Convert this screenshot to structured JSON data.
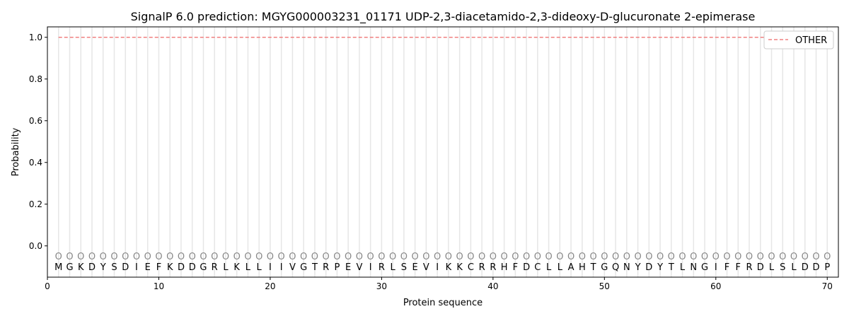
{
  "chart_data": {
    "type": "line",
    "title": "SignalP 6.0 prediction: MGYG000003231_01171 UDP-2,3-diacetamido-2,3-dideoxy-D-glucuronate 2-epimerase",
    "xlabel": "Protein sequence",
    "ylabel": "Probability",
    "xlim": [
      0,
      71
    ],
    "ylim": [
      -0.15,
      1.05
    ],
    "xticks": [
      0,
      10,
      20,
      30,
      40,
      50,
      60,
      70
    ],
    "yticks": [
      0.0,
      0.2,
      0.4,
      0.6,
      0.8,
      1.0
    ],
    "grid": "vertical lines at each residue",
    "legend_position": "top-right",
    "sequence": [
      "M",
      "G",
      "K",
      "D",
      "Y",
      "S",
      "D",
      "I",
      "E",
      "F",
      "K",
      "D",
      "D",
      "G",
      "R",
      "L",
      "K",
      "L",
      "L",
      "I",
      "I",
      "V",
      "G",
      "T",
      "R",
      "P",
      "E",
      "V",
      "I",
      "R",
      "L",
      "S",
      "E",
      "V",
      "I",
      "K",
      "K",
      "C",
      "R",
      "R",
      "H",
      "F",
      "D",
      "C",
      "L",
      "L",
      "A",
      "H",
      "T",
      "G",
      "Q",
      "N",
      "Y",
      "D",
      "Y",
      "T",
      "L",
      "N",
      "G",
      "I",
      "F",
      "F",
      "R",
      "D",
      "L",
      "S",
      "L",
      "D",
      "D",
      "P"
    ],
    "predicted_label": "O",
    "series": [
      {
        "name": "OTHER",
        "color": "#f08080",
        "style": "dashed",
        "x_range": [
          1,
          70
        ],
        "value": 1.0
      }
    ]
  }
}
